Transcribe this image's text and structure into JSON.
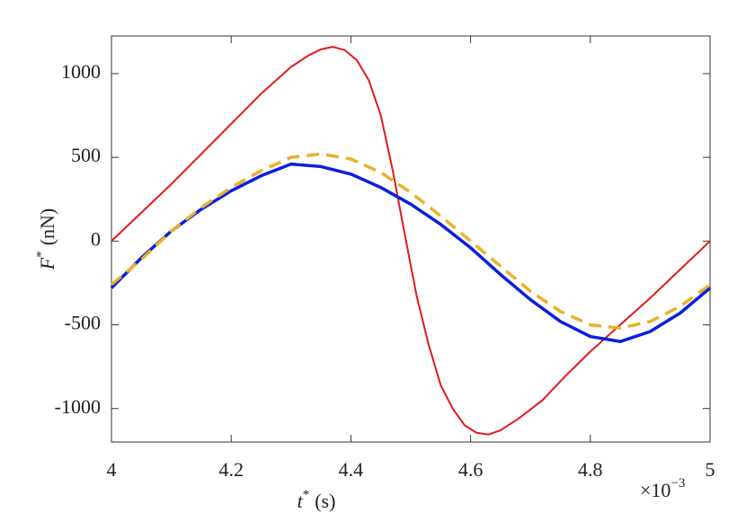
{
  "chart_data": {
    "type": "line",
    "xlabel": {
      "symbol": "t",
      "sup": "*",
      "unit": "(s)"
    },
    "ylabel": {
      "symbol": "F",
      "sup": "*",
      "unit": "(nN)"
    },
    "x_multiplier": {
      "base": "×10",
      "exponent": "−3"
    },
    "xlim": [
      4,
      5
    ],
    "xticks": [
      4,
      4.2,
      4.4,
      4.6,
      4.8,
      5
    ],
    "ylim": [
      -1200,
      1225
    ],
    "yticks": [
      -1000,
      -500,
      0,
      500,
      1000
    ],
    "grid": false,
    "series": [
      {
        "color": "#e3191c",
        "linewidth": 2,
        "style": "solid",
        "x": [
          4.0,
          4.05,
          4.1,
          4.15,
          4.2,
          4.25,
          4.3,
          4.33,
          4.35,
          4.37,
          4.39,
          4.41,
          4.43,
          4.45,
          4.47,
          4.49,
          4.51,
          4.53,
          4.55,
          4.57,
          4.59,
          4.61,
          4.63,
          4.65,
          4.68,
          4.72,
          4.76,
          4.8,
          4.85,
          4.9,
          4.95,
          5.0
        ],
        "values": [
          0,
          170,
          340,
          520,
          700,
          880,
          1040,
          1110,
          1145,
          1160,
          1140,
          1080,
          960,
          750,
          420,
          40,
          -330,
          -620,
          -860,
          -1000,
          -1100,
          -1145,
          -1155,
          -1130,
          -1060,
          -950,
          -800,
          -660,
          -500,
          -340,
          -170,
          0
        ]
      },
      {
        "color": "#0b1fe0",
        "linewidth": 3.5,
        "style": "solid",
        "x": [
          4.0,
          4.05,
          4.1,
          4.15,
          4.2,
          4.25,
          4.3,
          4.35,
          4.4,
          4.45,
          4.5,
          4.55,
          4.6,
          4.65,
          4.7,
          4.75,
          4.8,
          4.85,
          4.9,
          4.95,
          5.0
        ],
        "values": [
          -280,
          -100,
          60,
          190,
          300,
          390,
          460,
          445,
          400,
          320,
          220,
          100,
          -40,
          -200,
          -350,
          -480,
          -570,
          -600,
          -540,
          -430,
          -280
        ]
      },
      {
        "color": "#e8b22a",
        "linewidth": 3.5,
        "style": "dashed",
        "x": [
          4.0,
          4.05,
          4.1,
          4.15,
          4.2,
          4.25,
          4.3,
          4.35,
          4.4,
          4.45,
          4.5,
          4.55,
          4.6,
          4.65,
          4.7,
          4.75,
          4.8,
          4.85,
          4.9,
          4.95,
          5.0
        ],
        "values": [
          -260,
          -110,
          60,
          200,
          320,
          420,
          500,
          520,
          490,
          410,
          290,
          150,
          0,
          -150,
          -300,
          -420,
          -500,
          -520,
          -480,
          -390,
          -260
        ]
      }
    ]
  }
}
